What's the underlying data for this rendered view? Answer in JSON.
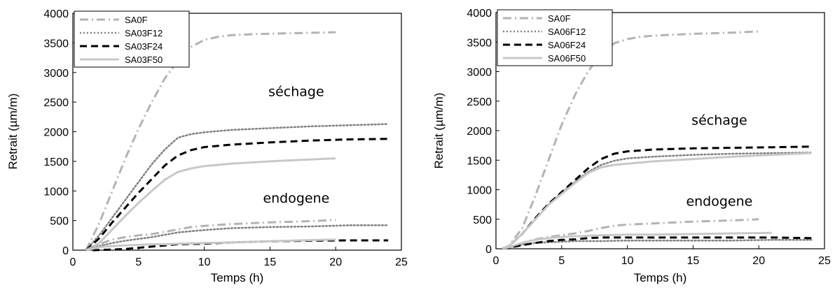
{
  "chart_data": [
    {
      "type": "line",
      "xlabel": "Temps (h)",
      "ylabel": "Retrait (µm/m)",
      "xlim": [
        0,
        25
      ],
      "ylim": [
        0,
        4000
      ],
      "xticks": [
        "0",
        "5",
        "10",
        "15",
        "20",
        "25"
      ],
      "yticks": [
        "0",
        "500",
        "1000",
        "1500",
        "2000",
        "2500",
        "3000",
        "3500",
        "4000"
      ],
      "legend": "top-left",
      "annotations": [
        {
          "text": "séchage",
          "x": 17,
          "y": 2600
        },
        {
          "text": "endogene",
          "x": 17,
          "y": 800
        }
      ],
      "series": [
        {
          "name": "SA0F",
          "style": "dashdot",
          "color": "#b3b3b3",
          "group": "séchage",
          "points": [
            [
              1,
              0
            ],
            [
              2,
              450
            ],
            [
              3,
              1000
            ],
            [
              4,
              1550
            ],
            [
              5,
              2050
            ],
            [
              6,
              2500
            ],
            [
              7,
              2900
            ],
            [
              8,
              3200
            ],
            [
              9,
              3430
            ],
            [
              10,
              3550
            ],
            [
              11,
              3600
            ],
            [
              12,
              3630
            ],
            [
              14,
              3650
            ],
            [
              16,
              3660
            ],
            [
              18,
              3670
            ],
            [
              20,
              3680
            ]
          ]
        },
        {
          "name": "SA03F12",
          "style": "dotted",
          "color": "#808080",
          "group": "séchage",
          "points": [
            [
              1,
              0
            ],
            [
              2,
              250
            ],
            [
              3,
              550
            ],
            [
              4,
              850
            ],
            [
              5,
              1150
            ],
            [
              6,
              1450
            ],
            [
              7,
              1700
            ],
            [
              8,
              1900
            ],
            [
              9,
              1960
            ],
            [
              10,
              1990
            ],
            [
              12,
              2030
            ],
            [
              15,
              2060
            ],
            [
              18,
              2090
            ],
            [
              21,
              2110
            ],
            [
              24,
              2130
            ]
          ]
        },
        {
          "name": "SA03F24",
          "style": "dashed",
          "color": "#000000",
          "group": "séchage",
          "points": [
            [
              1,
              0
            ],
            [
              2,
              200
            ],
            [
              3,
              470
            ],
            [
              4,
              720
            ],
            [
              5,
              970
            ],
            [
              6,
              1200
            ],
            [
              7,
              1430
            ],
            [
              8,
              1600
            ],
            [
              9,
              1690
            ],
            [
              10,
              1740
            ],
            [
              12,
              1780
            ],
            [
              15,
              1820
            ],
            [
              18,
              1850
            ],
            [
              21,
              1870
            ],
            [
              24,
              1880
            ]
          ]
        },
        {
          "name": "SA03F50",
          "style": "solid",
          "color": "#c8c8c8",
          "group": "séchage",
          "points": [
            [
              1,
              0
            ],
            [
              2,
              120
            ],
            [
              3,
              350
            ],
            [
              4,
              580
            ],
            [
              5,
              800
            ],
            [
              6,
              1000
            ],
            [
              7,
              1190
            ],
            [
              8,
              1320
            ],
            [
              9,
              1380
            ],
            [
              10,
              1420
            ],
            [
              12,
              1460
            ],
            [
              15,
              1500
            ],
            [
              18,
              1530
            ],
            [
              20,
              1550
            ]
          ]
        },
        {
          "name": "SA0F",
          "style": "dashdot",
          "color": "#b3b3b3",
          "group": "endogene",
          "points": [
            [
              1,
              0
            ],
            [
              2,
              100
            ],
            [
              3,
              180
            ],
            [
              4,
              220
            ],
            [
              5,
              250
            ],
            [
              6,
              270
            ],
            [
              7,
              310
            ],
            [
              8,
              350
            ],
            [
              9,
              390
            ],
            [
              10,
              410
            ],
            [
              12,
              440
            ],
            [
              15,
              470
            ],
            [
              18,
              490
            ],
            [
              20,
              510
            ]
          ]
        },
        {
          "name": "SA03F12",
          "style": "dotted",
          "color": "#808080",
          "group": "endogene",
          "points": [
            [
              1,
              0
            ],
            [
              2,
              70
            ],
            [
              3,
              120
            ],
            [
              4,
              160
            ],
            [
              5,
              190
            ],
            [
              6,
              220
            ],
            [
              7,
              260
            ],
            [
              8,
              300
            ],
            [
              9,
              320
            ],
            [
              10,
              340
            ],
            [
              12,
              370
            ],
            [
              15,
              390
            ],
            [
              18,
              400
            ],
            [
              21,
              420
            ],
            [
              24,
              420
            ]
          ]
        },
        {
          "name": "SA03F24",
          "style": "dashed",
          "color": "#000000",
          "group": "endogene",
          "points": [
            [
              1.5,
              0
            ],
            [
              3,
              10
            ],
            [
              4,
              20
            ],
            [
              5,
              40
            ],
            [
              6,
              60
            ],
            [
              7,
              80
            ],
            [
              8,
              100
            ],
            [
              10,
              110
            ],
            [
              12,
              130
            ],
            [
              15,
              150
            ],
            [
              18,
              160
            ],
            [
              21,
              165
            ],
            [
              24,
              165
            ]
          ]
        },
        {
          "name": "SA03F50",
          "style": "solid",
          "color": "#c8c8c8",
          "group": "endogene",
          "points": [
            [
              1,
              0
            ],
            [
              2,
              50
            ],
            [
              3,
              70
            ],
            [
              4,
              80
            ],
            [
              5,
              90
            ],
            [
              6,
              100
            ],
            [
              7,
              100
            ],
            [
              8,
              110
            ],
            [
              10,
              120
            ],
            [
              12,
              130
            ],
            [
              15,
              150
            ],
            [
              18,
              170
            ],
            [
              20,
              180
            ]
          ]
        }
      ]
    },
    {
      "type": "line",
      "xlabel": "Temps (h)",
      "ylabel": "Retrait (µm/m)",
      "xlim": [
        0,
        25
      ],
      "ylim": [
        0,
        4000
      ],
      "xticks": [
        "0",
        "5",
        "10",
        "15",
        "20",
        "25"
      ],
      "yticks": [
        "0",
        "500",
        "1000",
        "1500",
        "2000",
        "2500",
        "3000",
        "3500",
        "4000"
      ],
      "legend": "top-left",
      "annotations": [
        {
          "text": "séchage",
          "x": 17,
          "y": 2100
        },
        {
          "text": "endogene",
          "x": 17,
          "y": 730
        }
      ],
      "series": [
        {
          "name": "SA0F",
          "style": "dashdot",
          "color": "#b3b3b3",
          "group": "séchage",
          "points": [
            [
              0.5,
              0
            ],
            [
              1,
              50
            ],
            [
              2,
              350
            ],
            [
              3,
              900
            ],
            [
              4,
              1500
            ],
            [
              5,
              2100
            ],
            [
              6,
              2600
            ],
            [
              7,
              3000
            ],
            [
              8,
              3300
            ],
            [
              9,
              3480
            ],
            [
              10,
              3550
            ],
            [
              11,
              3590
            ],
            [
              12,
              3610
            ],
            [
              15,
              3640
            ],
            [
              18,
              3660
            ],
            [
              20,
              3680
            ]
          ]
        },
        {
          "name": "SA06F12",
          "style": "dotted",
          "color": "#808080",
          "group": "séchage",
          "points": [
            [
              0.5,
              0
            ],
            [
              1,
              50
            ],
            [
              2,
              250
            ],
            [
              3,
              500
            ],
            [
              4,
              750
            ],
            [
              5,
              950
            ],
            [
              6,
              1130
            ],
            [
              7,
              1300
            ],
            [
              8,
              1420
            ],
            [
              9,
              1490
            ],
            [
              10,
              1530
            ],
            [
              12,
              1560
            ],
            [
              15,
              1590
            ],
            [
              18,
              1610
            ],
            [
              21,
              1620
            ],
            [
              24,
              1630
            ]
          ]
        },
        {
          "name": "SA06F24",
          "style": "dashed",
          "color": "#000000",
          "group": "séchage",
          "points": [
            [
              0.5,
              0
            ],
            [
              1,
              50
            ],
            [
              2,
              250
            ],
            [
              3,
              520
            ],
            [
              4,
              760
            ],
            [
              5,
              960
            ],
            [
              6,
              1160
            ],
            [
              7,
              1360
            ],
            [
              8,
              1520
            ],
            [
              9,
              1610
            ],
            [
              10,
              1650
            ],
            [
              12,
              1680
            ],
            [
              15,
              1700
            ],
            [
              18,
              1710
            ],
            [
              21,
              1720
            ],
            [
              24,
              1730
            ]
          ]
        },
        {
          "name": "SA06F50",
          "style": "solid",
          "color": "#c8c8c8",
          "group": "séchage",
          "points": [
            [
              0.5,
              0
            ],
            [
              1,
              50
            ],
            [
              2,
              250
            ],
            [
              3,
              500
            ],
            [
              4,
              740
            ],
            [
              5,
              930
            ],
            [
              6,
              1110
            ],
            [
              7,
              1280
            ],
            [
              8,
              1380
            ],
            [
              9,
              1420
            ],
            [
              10,
              1440
            ],
            [
              12,
              1480
            ],
            [
              15,
              1520
            ],
            [
              18,
              1560
            ],
            [
              21,
              1590
            ],
            [
              24,
              1620
            ]
          ]
        },
        {
          "name": "SA0F",
          "style": "dashdot",
          "color": "#b3b3b3",
          "group": "endogene",
          "points": [
            [
              0.5,
              0
            ],
            [
              1,
              30
            ],
            [
              2,
              100
            ],
            [
              3,
              160
            ],
            [
              4,
              200
            ],
            [
              5,
              230
            ],
            [
              6,
              260
            ],
            [
              7,
              300
            ],
            [
              8,
              350
            ],
            [
              9,
              390
            ],
            [
              10,
              410
            ],
            [
              12,
              430
            ],
            [
              15,
              460
            ],
            [
              18,
              480
            ],
            [
              20,
              500
            ]
          ]
        },
        {
          "name": "SA06F12",
          "style": "dotted",
          "color": "#808080",
          "group": "endogene",
          "points": [
            [
              0.5,
              0
            ],
            [
              1,
              20
            ],
            [
              2,
              70
            ],
            [
              3,
              100
            ],
            [
              4,
              110
            ],
            [
              5,
              120
            ],
            [
              6,
              130
            ],
            [
              8,
              130
            ],
            [
              10,
              140
            ],
            [
              12,
              140
            ],
            [
              15,
              140
            ],
            [
              18,
              140
            ],
            [
              21,
              150
            ],
            [
              24,
              150
            ]
          ]
        },
        {
          "name": "SA06F24",
          "style": "dashed",
          "color": "#000000",
          "group": "endogene",
          "points": [
            [
              0.5,
              0
            ],
            [
              1,
              20
            ],
            [
              2,
              60
            ],
            [
              3,
              100
            ],
            [
              4,
              130
            ],
            [
              5,
              150
            ],
            [
              6,
              160
            ],
            [
              7,
              180
            ],
            [
              8,
              190
            ],
            [
              10,
              190
            ],
            [
              12,
              190
            ],
            [
              15,
              190
            ],
            [
              18,
              190
            ],
            [
              21,
              190
            ],
            [
              24,
              180
            ]
          ]
        },
        {
          "name": "SA06F50",
          "style": "solid",
          "color": "#c8c8c8",
          "group": "endogene",
          "points": [
            [
              0.5,
              0
            ],
            [
              1,
              30
            ],
            [
              2,
              100
            ],
            [
              3,
              150
            ],
            [
              4,
              180
            ],
            [
              5,
              200
            ],
            [
              6,
              210
            ],
            [
              7,
              220
            ],
            [
              8,
              230
            ],
            [
              10,
              240
            ],
            [
              12,
              240
            ],
            [
              15,
              250
            ],
            [
              18,
              260
            ],
            [
              21,
              270
            ]
          ]
        }
      ]
    }
  ]
}
